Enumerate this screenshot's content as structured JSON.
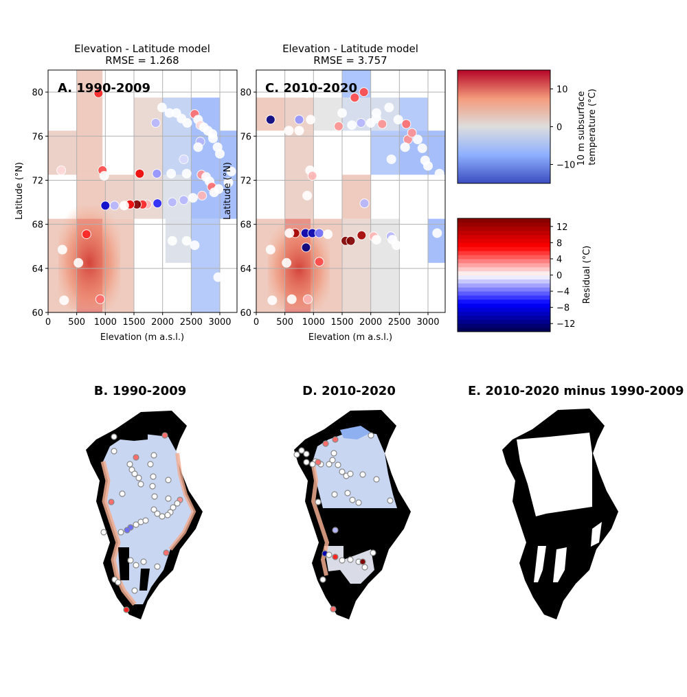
{
  "chart_data": [
    {
      "type": "heatmap",
      "panel": "A",
      "title": "Elevation - Latitude model",
      "subtitle": "RMSE = 1.268",
      "label": "A. 1990-2009",
      "xlabel": "Elevation (m a.s.l.)",
      "ylabel": "Latitude (°N)",
      "xlim": [
        0,
        3300
      ],
      "ylim": [
        60,
        82
      ],
      "x_ticks": [
        "0",
        "500",
        "1000",
        "1500",
        "2000",
        "2500",
        "3000"
      ],
      "y_ticks": [
        "60",
        "64",
        "68",
        "72",
        "76",
        "80"
      ],
      "grid": true,
      "model_cells": [
        {
          "x": [
            0,
            500
          ],
          "y": [
            72.5,
            76.5
          ],
          "value": 3
        },
        {
          "x": [
            500,
            950
          ],
          "y": [
            72.5,
            82
          ],
          "value": 4
        },
        {
          "x": [
            1500,
            2000
          ],
          "y": [
            72.5,
            79.5
          ],
          "value": 2
        },
        {
          "x": [
            2000,
            2500
          ],
          "y": [
            72.5,
            79.5
          ],
          "value": -4
        },
        {
          "x": [
            2500,
            3000
          ],
          "y": [
            68.5,
            79.5
          ],
          "value": -8
        },
        {
          "x": [
            3000,
            3300
          ],
          "y": [
            68.5,
            76.5
          ],
          "value": -8
        },
        {
          "x": [
            500,
            1000
          ],
          "y": [
            68.5,
            72.5
          ],
          "value": 4
        },
        {
          "x": [
            1000,
            1500
          ],
          "y": [
            68.5,
            72.5
          ],
          "value": 3
        },
        {
          "x": [
            1500,
            2000
          ],
          "y": [
            68.5,
            72.5
          ],
          "value": 2
        },
        {
          "x": [
            2000,
            2500
          ],
          "y": [
            68.5,
            72.5
          ],
          "value": -1
        },
        {
          "x": [
            0,
            500
          ],
          "y": [
            60,
            68.5
          ],
          "value": 4
        },
        {
          "x": [
            500,
            950
          ],
          "y": [
            60,
            68.5
          ],
          "value": 10
        },
        {
          "x": [
            950,
            1500
          ],
          "y": [
            60,
            68.5
          ],
          "value": 4
        },
        {
          "x": [
            2050,
            2500
          ],
          "y": [
            64.5,
            68.5
          ],
          "value": -1
        },
        {
          "x": [
            2500,
            3000
          ],
          "y": [
            60,
            68.5
          ],
          "value": -6
        }
      ],
      "observations": [
        {
          "x": 880,
          "y": 79.9,
          "value": 6
        },
        {
          "x": 230,
          "y": 72.9,
          "value": 1
        },
        {
          "x": 950,
          "y": 72.9,
          "value": 5
        },
        {
          "x": 980,
          "y": 72.4,
          "value": 0
        },
        {
          "x": 1600,
          "y": 72.6,
          "value": 8
        },
        {
          "x": 1900,
          "y": 72.6,
          "value": -3
        },
        {
          "x": 1990,
          "y": 78.6,
          "value": 0
        },
        {
          "x": 2120,
          "y": 78.1,
          "value": 0
        },
        {
          "x": 2240,
          "y": 78.1,
          "value": 0
        },
        {
          "x": 2330,
          "y": 77.6,
          "value": 0
        },
        {
          "x": 2430,
          "y": 77.2,
          "value": 0
        },
        {
          "x": 2560,
          "y": 78.0,
          "value": 4
        },
        {
          "x": 2620,
          "y": 77.5,
          "value": 0
        },
        {
          "x": 2660,
          "y": 77.0,
          "value": 1
        },
        {
          "x": 2720,
          "y": 76.8,
          "value": 0
        },
        {
          "x": 2790,
          "y": 76.5,
          "value": 0
        },
        {
          "x": 2870,
          "y": 76.2,
          "value": 0
        },
        {
          "x": 2660,
          "y": 75.5,
          "value": -2
        },
        {
          "x": 2620,
          "y": 75.0,
          "value": 0
        },
        {
          "x": 2880,
          "y": 75.8,
          "value": 0
        },
        {
          "x": 2960,
          "y": 75.0,
          "value": 0
        },
        {
          "x": 3000,
          "y": 74.4,
          "value": 0
        },
        {
          "x": 2370,
          "y": 73.9,
          "value": -1
        },
        {
          "x": 1880,
          "y": 77.2,
          "value": -2
        },
        {
          "x": 2150,
          "y": 72.6,
          "value": 0
        },
        {
          "x": 2420,
          "y": 72.6,
          "value": 0
        },
        {
          "x": 2680,
          "y": 72.5,
          "value": 3
        },
        {
          "x": 2760,
          "y": 72.3,
          "value": 0
        },
        {
          "x": 2820,
          "y": 71.9,
          "value": 0
        },
        {
          "x": 2860,
          "y": 71.4,
          "value": 4
        },
        {
          "x": 2980,
          "y": 71.2,
          "value": 0
        },
        {
          "x": 3150,
          "y": 71.8,
          "value": 0
        },
        {
          "x": 3200,
          "y": 72.8,
          "value": 0
        },
        {
          "x": 2900,
          "y": 70.9,
          "value": 0
        },
        {
          "x": 2690,
          "y": 70.6,
          "value": 2
        },
        {
          "x": 2530,
          "y": 70.4,
          "value": 0
        },
        {
          "x": 2370,
          "y": 70.2,
          "value": -2
        },
        {
          "x": 2170,
          "y": 70.0,
          "value": -2
        },
        {
          "x": 1910,
          "y": 69.9,
          "value": -6
        },
        {
          "x": 1730,
          "y": 69.8,
          "value": 2
        },
        {
          "x": 1650,
          "y": 69.8,
          "value": 6
        },
        {
          "x": 1550,
          "y": 69.8,
          "value": 14
        },
        {
          "x": 1430,
          "y": 69.8,
          "value": 8
        },
        {
          "x": 1330,
          "y": 69.7,
          "value": 0
        },
        {
          "x": 1160,
          "y": 69.7,
          "value": -2
        },
        {
          "x": 1000,
          "y": 69.7,
          "value": -9
        },
        {
          "x": 670,
          "y": 67.1,
          "value": 6
        },
        {
          "x": 250,
          "y": 65.7,
          "value": 0
        },
        {
          "x": 530,
          "y": 64.5,
          "value": 0
        },
        {
          "x": 280,
          "y": 61.1,
          "value": 0
        },
        {
          "x": 910,
          "y": 61.2,
          "value": 4
        },
        {
          "x": 2170,
          "y": 66.5,
          "value": 0
        },
        {
          "x": 2420,
          "y": 66.5,
          "value": 0
        },
        {
          "x": 2560,
          "y": 66.1,
          "value": 0
        },
        {
          "x": 2970,
          "y": 63.2,
          "value": 0
        }
      ]
    },
    {
      "type": "heatmap",
      "panel": "C",
      "title": "Elevation - Latitude model",
      "subtitle": "RMSE = 3.757",
      "label": "C. 2010-2020",
      "xlabel": "Elevation (m a.s.l.)",
      "ylabel": "Latitude (°N)",
      "xlim": [
        0,
        3300
      ],
      "ylim": [
        60,
        82
      ],
      "x_ticks": [
        "0",
        "500",
        "1000",
        "1500",
        "2000",
        "2500",
        "3000"
      ],
      "y_ticks": [
        "60",
        "64",
        "68",
        "72",
        "76",
        "80"
      ],
      "grid": true,
      "model_cells": [
        {
          "x": [
            0,
            500
          ],
          "y": [
            76.5,
            79.5
          ],
          "value": 4
        },
        {
          "x": [
            500,
            1000
          ],
          "y": [
            76.5,
            79.5
          ],
          "value": 3
        },
        {
          "x": [
            1000,
            1500
          ],
          "y": [
            76.5,
            79.5
          ],
          "value": 0
        },
        {
          "x": [
            1500,
            2000
          ],
          "y": [
            79.5,
            82
          ],
          "value": -7
        },
        {
          "x": [
            1500,
            2000
          ],
          "y": [
            76.5,
            79.5
          ],
          "value": -2
        },
        {
          "x": [
            2000,
            2500
          ],
          "y": [
            76.5,
            79.5
          ],
          "value": -2
        },
        {
          "x": [
            2500,
            3000
          ],
          "y": [
            76.5,
            79.5
          ],
          "value": -6
        },
        {
          "x": [
            2000,
            2500
          ],
          "y": [
            72.5,
            76.5
          ],
          "value": -6
        },
        {
          "x": [
            2500,
            3000
          ],
          "y": [
            72.5,
            76.5
          ],
          "value": -8
        },
        {
          "x": [
            3000,
            3300
          ],
          "y": [
            72.5,
            76.5
          ],
          "value": -8
        },
        {
          "x": [
            500,
            1000
          ],
          "y": [
            68.5,
            76.5
          ],
          "value": 3
        },
        {
          "x": [
            1500,
            2000
          ],
          "y": [
            68.5,
            72.5
          ],
          "value": 4
        },
        {
          "x": [
            0,
            500
          ],
          "y": [
            60,
            68.5
          ],
          "value": 4
        },
        {
          "x": [
            500,
            950
          ],
          "y": [
            60,
            68.5
          ],
          "value": 10
        },
        {
          "x": [
            950,
            1500
          ],
          "y": [
            60,
            68.5
          ],
          "value": 4
        },
        {
          "x": [
            1500,
            2000
          ],
          "y": [
            60,
            68.5
          ],
          "value": 2
        },
        {
          "x": [
            2000,
            2500
          ],
          "y": [
            60,
            68.5
          ],
          "value": 0
        },
        {
          "x": [
            3000,
            3300
          ],
          "y": [
            64.5,
            68.5
          ],
          "value": -8
        }
      ],
      "observations": [
        {
          "x": 250,
          "y": 77.5,
          "value": -12
        },
        {
          "x": 880,
          "y": 79.9,
          "value": 0
        },
        {
          "x": 750,
          "y": 77.5,
          "value": -3
        },
        {
          "x": 950,
          "y": 77.5,
          "value": 0
        },
        {
          "x": 570,
          "y": 76.5,
          "value": 0
        },
        {
          "x": 750,
          "y": 76.5,
          "value": 0
        },
        {
          "x": 1440,
          "y": 76.9,
          "value": 3
        },
        {
          "x": 1500,
          "y": 78.1,
          "value": 0
        },
        {
          "x": 1670,
          "y": 77.0,
          "value": 0
        },
        {
          "x": 1720,
          "y": 79.5,
          "value": 5
        },
        {
          "x": 1880,
          "y": 80.0,
          "value": 5
        },
        {
          "x": 1830,
          "y": 77.2,
          "value": -2
        },
        {
          "x": 2000,
          "y": 77.2,
          "value": 0
        },
        {
          "x": 2100,
          "y": 77.6,
          "value": 0
        },
        {
          "x": 2100,
          "y": 78.1,
          "value": 0
        },
        {
          "x": 2200,
          "y": 77.1,
          "value": 3
        },
        {
          "x": 2320,
          "y": 78.6,
          "value": 0
        },
        {
          "x": 2480,
          "y": 77.5,
          "value": 0
        },
        {
          "x": 2620,
          "y": 77.1,
          "value": 4
        },
        {
          "x": 2650,
          "y": 75.7,
          "value": 3
        },
        {
          "x": 2720,
          "y": 76.3,
          "value": 3
        },
        {
          "x": 2600,
          "y": 75.0,
          "value": 0
        },
        {
          "x": 2820,
          "y": 75.7,
          "value": 0
        },
        {
          "x": 2900,
          "y": 74.9,
          "value": 0
        },
        {
          "x": 2950,
          "y": 73.8,
          "value": 0
        },
        {
          "x": 3000,
          "y": 73.3,
          "value": 0
        },
        {
          "x": 3200,
          "y": 72.6,
          "value": 0
        },
        {
          "x": 2360,
          "y": 73.9,
          "value": 0
        },
        {
          "x": 230,
          "y": 72.9,
          "value": 0
        },
        {
          "x": 940,
          "y": 72.9,
          "value": 0
        },
        {
          "x": 980,
          "y": 72.4,
          "value": 2
        },
        {
          "x": 890,
          "y": 70.6,
          "value": 0
        },
        {
          "x": 1890,
          "y": 69.9,
          "value": -2
        },
        {
          "x": 680,
          "y": 67.2,
          "value": 12
        },
        {
          "x": 580,
          "y": 67.2,
          "value": 0
        },
        {
          "x": 860,
          "y": 67.2,
          "value": -10
        },
        {
          "x": 980,
          "y": 67.2,
          "value": -10
        },
        {
          "x": 1100,
          "y": 67.2,
          "value": -4
        },
        {
          "x": 1250,
          "y": 67.1,
          "value": 0
        },
        {
          "x": 1560,
          "y": 66.5,
          "value": 14
        },
        {
          "x": 1650,
          "y": 66.5,
          "value": 14
        },
        {
          "x": 1840,
          "y": 67.0,
          "value": 12
        },
        {
          "x": 2050,
          "y": 66.9,
          "value": 2
        },
        {
          "x": 2100,
          "y": 66.6,
          "value": 0
        },
        {
          "x": 2350,
          "y": 66.9,
          "value": -2
        },
        {
          "x": 2380,
          "y": 66.6,
          "value": 0
        },
        {
          "x": 2450,
          "y": 66.1,
          "value": 0
        },
        {
          "x": 1100,
          "y": 64.6,
          "value": 5
        },
        {
          "x": 870,
          "y": 65.9,
          "value": -12
        },
        {
          "x": 250,
          "y": 65.7,
          "value": 0
        },
        {
          "x": 530,
          "y": 64.5,
          "value": 0
        },
        {
          "x": 280,
          "y": 61.1,
          "value": 0
        },
        {
          "x": 620,
          "y": 61.2,
          "value": 0
        },
        {
          "x": 900,
          "y": 61.2,
          "value": 2
        },
        {
          "x": 3160,
          "y": 67.2,
          "value": 0
        }
      ]
    },
    {
      "type": "colorbar",
      "name": "temperature",
      "label": "10 m subsurface\ntemperature (°C)",
      "range": [
        -15,
        15
      ],
      "ticks": [
        "10",
        "0",
        "−10"
      ],
      "tick_values": [
        10,
        0,
        -10
      ],
      "colormap": "coolwarm"
    },
    {
      "type": "colorbar",
      "name": "residual",
      "label": "Residual (°C)",
      "range": [
        -14,
        14
      ],
      "ticks": [
        "12",
        "8",
        "4",
        "0",
        "−4",
        "−8",
        "−12"
      ],
      "tick_values": [
        12,
        8,
        4,
        0,
        -4,
        -8,
        -12
      ],
      "colormap": "seismic",
      "discrete_levels": 28
    },
    {
      "type": "map",
      "panel": "B",
      "title": "B. 1990-2009",
      "content": "Greenland temperature map with observation sites"
    },
    {
      "type": "map",
      "panel": "D",
      "title": "D. 2010-2020",
      "content": "Greenland temperature map with observation sites"
    },
    {
      "type": "map",
      "panel": "E",
      "title": "E. 2010-2020 minus 1990-2009",
      "content": "Difference map"
    }
  ],
  "colors": {
    "grid": "#b0b0b0",
    "land": "#000000",
    "marker_edge": "#ffffff",
    "map_marker_edge": "#888888"
  }
}
